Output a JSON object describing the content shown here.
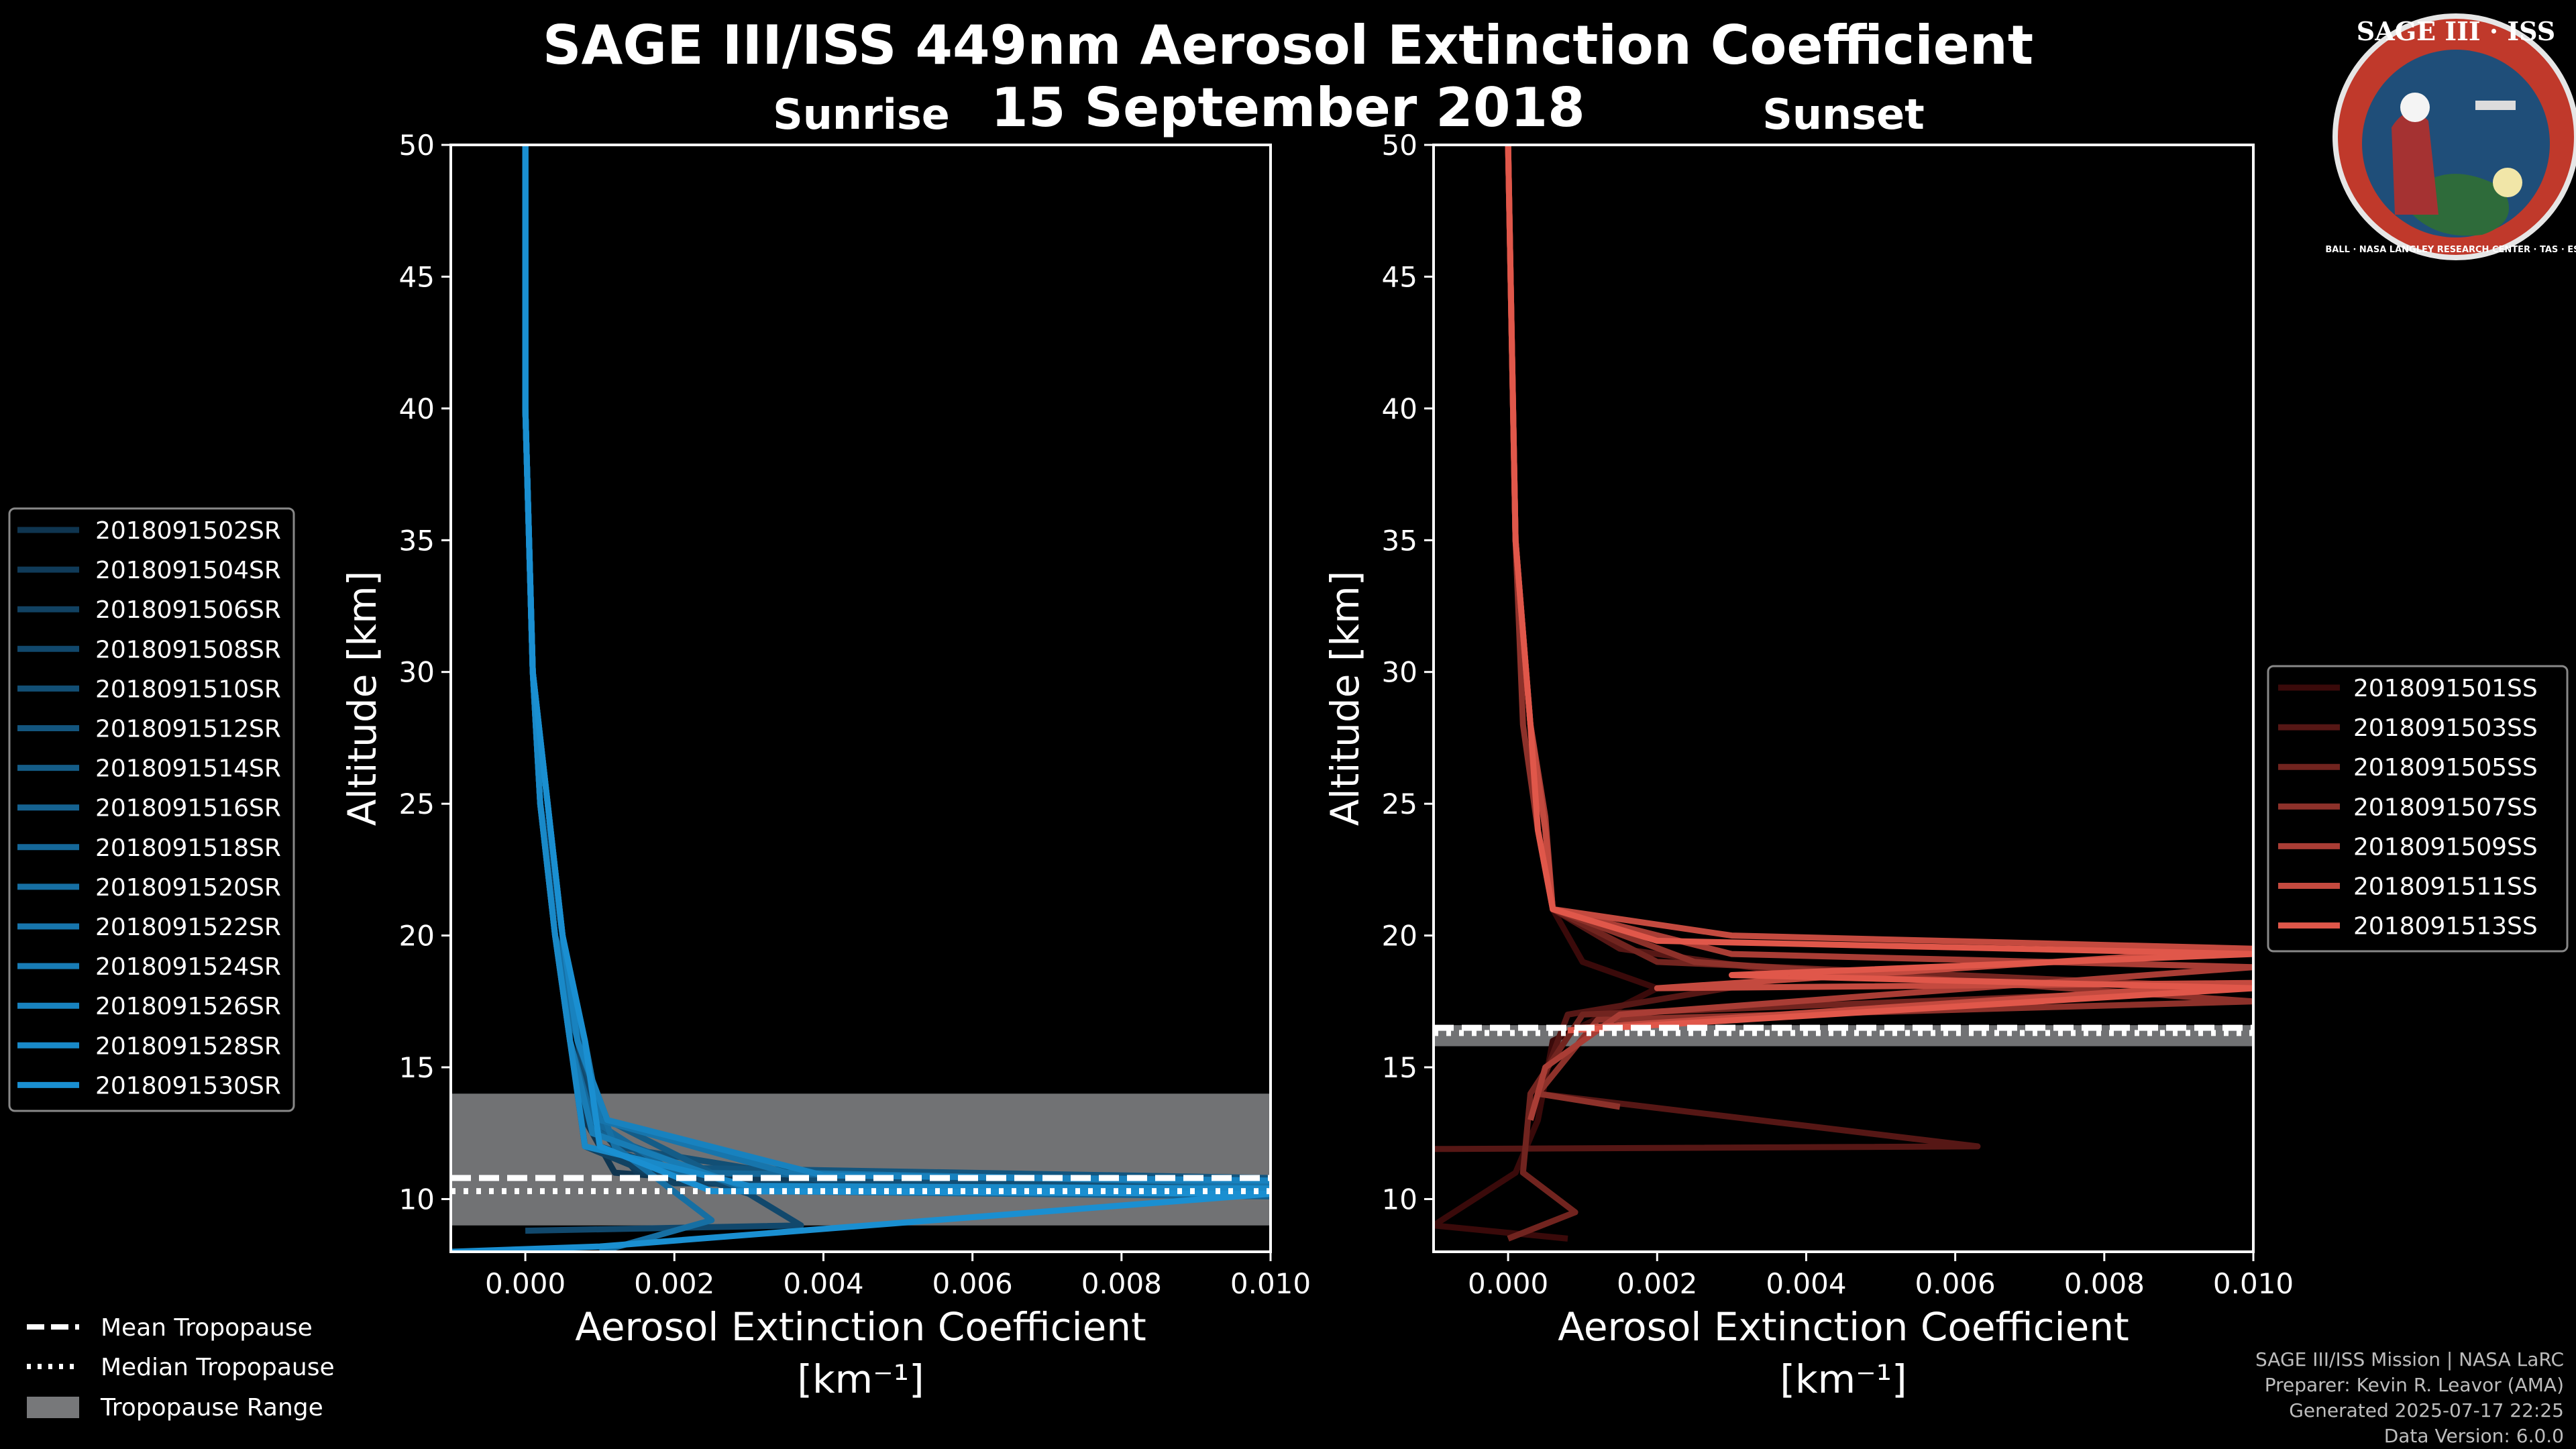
{
  "title": "SAGE III/ISS 449nm Aerosol Extinction Coefficient",
  "date": "15 September 2018",
  "logo": {
    "text": "SAGE III · ISS",
    "ring_text": "BALL · NASA LANGLEY RESEARCH CENTER · TAS · ESA",
    "colors": {
      "ring": "#c0392b",
      "inner": "#1f4e79",
      "ground": "#2e6b3a"
    }
  },
  "footer": [
    "SAGE III/ISS Mission | NASA LaRC",
    "Preparer: Kevin R. Leavor (AMA)",
    "Generated 2025-07-17 22:25",
    "Data Version: 6.0.0"
  ],
  "bottom_legend": [
    {
      "label": "Mean Tropopause",
      "style": "dashed"
    },
    {
      "label": "Median Tropopause",
      "style": "dotted"
    },
    {
      "label": "Tropopause Range",
      "style": "patch"
    }
  ],
  "chart_data": [
    {
      "type": "line",
      "subtitle": "Sunrise",
      "xlabel": "Aerosol Extinction Coefficient",
      "xunit": "[km⁻¹]",
      "ylabel": "Altitude [km]",
      "xlim": [
        -0.001,
        0.01
      ],
      "ylim": [
        8,
        50
      ],
      "xticks": [
        "0.000",
        "0.002",
        "0.004",
        "0.006",
        "0.008",
        "0.010"
      ],
      "xtick_values": [
        0,
        0.002,
        0.004,
        0.006,
        0.008,
        0.01
      ],
      "yticks": [
        10,
        15,
        20,
        25,
        30,
        35,
        40,
        45,
        50
      ],
      "tropopause": {
        "min": 9.0,
        "max": 14.0,
        "mean": 10.8,
        "median": 10.3
      },
      "legend_position": "outside-left",
      "series_color_start": "#0f3550",
      "series_color_end": "#1a8fd1",
      "series": [
        {
          "name": "2018091502SR",
          "data": [
            [
              0.0,
              50
            ],
            [
              0.0,
              40
            ],
            [
              0.0001,
              30
            ],
            [
              0.0002,
              25
            ],
            [
              0.0004,
              20
            ],
            [
              0.0006,
              16
            ],
            [
              0.0008,
              13
            ],
            [
              0.0012,
              11
            ],
            [
              0.004,
              10.4
            ],
            [
              0.01,
              10.2
            ]
          ]
        },
        {
          "name": "2018091504SR",
          "data": [
            [
              0.0,
              50
            ],
            [
              0.0,
              40
            ],
            [
              0.0001,
              30
            ],
            [
              0.0002,
              25
            ],
            [
              0.0005,
              20
            ],
            [
              0.0007,
              16
            ],
            [
              0.0009,
              13
            ],
            [
              0.0015,
              11
            ],
            [
              0.005,
              10.5
            ],
            [
              0.01,
              10.3
            ]
          ]
        },
        {
          "name": "2018091506SR",
          "data": [
            [
              0.0,
              50
            ],
            [
              0.0,
              40
            ],
            [
              0.0001,
              30
            ],
            [
              0.0003,
              25
            ],
            [
              0.0005,
              20
            ],
            [
              0.0006,
              16
            ],
            [
              0.0008,
              12
            ],
            [
              0.002,
              10.6
            ],
            [
              0.01,
              10.4
            ]
          ]
        },
        {
          "name": "2018091508SR",
          "data": [
            [
              0.0,
              50
            ],
            [
              0.0,
              40
            ],
            [
              0.0001,
              30
            ],
            [
              0.0002,
              25
            ],
            [
              0.0004,
              20
            ],
            [
              0.0007,
              16
            ],
            [
              0.001,
              12
            ],
            [
              0.003,
              10.2
            ],
            [
              0.0037,
              9.0
            ],
            [
              0.0,
              8.8
            ]
          ]
        },
        {
          "name": "2018091510SR",
          "data": [
            [
              0.0,
              50
            ],
            [
              0.0,
              40
            ],
            [
              0.0001,
              30
            ],
            [
              0.0003,
              25
            ],
            [
              0.0005,
              20
            ],
            [
              0.0008,
              15
            ],
            [
              0.0012,
              12
            ],
            [
              0.004,
              10.7
            ],
            [
              0.01,
              10.5
            ]
          ]
        },
        {
          "name": "2018091512SR",
          "data": [
            [
              0.0,
              50
            ],
            [
              0.0,
              40
            ],
            [
              0.0001,
              30
            ],
            [
              0.0002,
              25
            ],
            [
              0.0004,
              20
            ],
            [
              0.0006,
              16
            ],
            [
              0.0009,
              13
            ],
            [
              0.0018,
              11.2
            ],
            [
              0.01,
              10.8
            ]
          ]
        },
        {
          "name": "2018091514SR",
          "data": [
            [
              0.0,
              50
            ],
            [
              0.0,
              40
            ],
            [
              0.0001,
              30
            ],
            [
              0.0003,
              25
            ],
            [
              0.0005,
              20
            ],
            [
              0.0007,
              16
            ],
            [
              0.0011,
              13
            ],
            [
              0.0025,
              11
            ],
            [
              0.01,
              10.6
            ]
          ]
        },
        {
          "name": "2018091516SR",
          "data": [
            [
              0.0,
              50
            ],
            [
              0.0,
              40
            ],
            [
              0.0001,
              30
            ],
            [
              0.0002,
              25
            ],
            [
              0.0004,
              20
            ],
            [
              0.0008,
              16
            ],
            [
              0.001,
              12.5
            ],
            [
              0.003,
              10.3
            ],
            [
              0.01,
              10.1
            ]
          ]
        },
        {
          "name": "2018091518SR",
          "data": [
            [
              0.0,
              50
            ],
            [
              0.0,
              40
            ],
            [
              0.0001,
              30
            ],
            [
              0.0003,
              25
            ],
            [
              0.0005,
              20
            ],
            [
              0.0006,
              16
            ],
            [
              0.0009,
              13
            ],
            [
              0.002,
              11
            ],
            [
              0.01,
              10.7
            ]
          ]
        },
        {
          "name": "2018091520SR",
          "data": [
            [
              0.0,
              50
            ],
            [
              0.0,
              40
            ],
            [
              0.0001,
              30
            ],
            [
              0.0002,
              25
            ],
            [
              0.0004,
              20
            ],
            [
              0.0007,
              16
            ],
            [
              0.0012,
              12
            ],
            [
              0.0025,
              9.2
            ],
            [
              0.001,
              8.0
            ]
          ]
        },
        {
          "name": "2018091522SR",
          "data": [
            [
              0.0,
              50
            ],
            [
              0.0,
              40
            ],
            [
              0.0001,
              30
            ],
            [
              0.0003,
              25
            ],
            [
              0.0005,
              20
            ],
            [
              0.0008,
              16
            ],
            [
              0.001,
              13
            ],
            [
              0.0035,
              11
            ],
            [
              0.01,
              10.6
            ]
          ]
        },
        {
          "name": "2018091524SR",
          "data": [
            [
              0.0,
              50
            ],
            [
              0.0,
              40
            ],
            [
              0.0001,
              30
            ],
            [
              0.0002,
              25
            ],
            [
              0.0004,
              20
            ],
            [
              0.0006,
              16
            ],
            [
              0.0009,
              12.5
            ],
            [
              0.003,
              10.4
            ],
            [
              0.01,
              10.2
            ]
          ]
        },
        {
          "name": "2018091526SR",
          "data": [
            [
              0.0,
              50
            ],
            [
              0.0,
              40
            ],
            [
              0.0001,
              30
            ],
            [
              0.0003,
              25
            ],
            [
              0.0005,
              20
            ],
            [
              0.0007,
              16
            ],
            [
              0.0011,
              13
            ],
            [
              0.004,
              10.9
            ],
            [
              0.01,
              10.7
            ]
          ]
        },
        {
          "name": "2018091528SR",
          "data": [
            [
              0.0,
              50
            ],
            [
              0.0,
              40
            ],
            [
              0.0001,
              30
            ],
            [
              0.0002,
              25
            ],
            [
              0.0004,
              20
            ],
            [
              0.0006,
              16
            ],
            [
              0.0008,
              12
            ],
            [
              0.003,
              10.5
            ],
            [
              0.01,
              10.4
            ]
          ]
        },
        {
          "name": "2018091530SR",
          "data": [
            [
              0.0,
              50
            ],
            [
              0.0,
              40
            ],
            [
              0.0001,
              30
            ],
            [
              0.0003,
              25
            ],
            [
              0.0005,
              20
            ],
            [
              0.0008,
              16
            ],
            [
              0.001,
              12
            ],
            [
              0.0025,
              10.3
            ],
            [
              0.01,
              10.2
            ],
            [
              0.001,
              8.2
            ],
            [
              -0.001,
              8.0
            ]
          ]
        }
      ]
    },
    {
      "type": "line",
      "subtitle": "Sunset",
      "xlabel": "Aerosol Extinction Coefficient",
      "xunit": "[km⁻¹]",
      "ylabel": "Altitude [km]",
      "xlim": [
        -0.001,
        0.01
      ],
      "ylim": [
        8,
        50
      ],
      "xticks": [
        "0.000",
        "0.002",
        "0.004",
        "0.006",
        "0.008",
        "0.010"
      ],
      "xtick_values": [
        0,
        0.002,
        0.004,
        0.006,
        0.008,
        0.01
      ],
      "yticks": [
        10,
        15,
        20,
        25,
        30,
        35,
        40,
        45,
        50
      ],
      "tropopause": {
        "min": 15.8,
        "max": 16.6,
        "mean": 16.5,
        "median": 16.3
      },
      "legend_position": "right",
      "series_color_start": "#3a0a0a",
      "series_color_end": "#e0574a",
      "series": [
        {
          "name": "2018091501SS",
          "data": [
            [
              0.0,
              50
            ],
            [
              0.0001,
              35
            ],
            [
              0.0003,
              28
            ],
            [
              0.0005,
              24
            ],
            [
              0.0006,
              21
            ],
            [
              0.001,
              19
            ],
            [
              0.002,
              18
            ],
            [
              0.0006,
              16
            ],
            [
              0.0004,
              13
            ],
            [
              0.0001,
              11
            ],
            [
              -0.001,
              9
            ],
            [
              0.0008,
              8.5
            ]
          ]
        },
        {
          "name": "2018091503SS",
          "data": [
            [
              0.0,
              50
            ],
            [
              0.0001,
              35
            ],
            [
              0.0003,
              28
            ],
            [
              0.0004,
              24
            ],
            [
              0.0006,
              21
            ],
            [
              0.0015,
              19.5
            ],
            [
              0.004,
              18.5
            ],
            [
              0.0008,
              17
            ],
            [
              0.0004,
              14
            ],
            [
              0.0063,
              12
            ],
            [
              -0.001,
              11.9
            ]
          ]
        },
        {
          "name": "2018091505SS",
          "data": [
            [
              0.0,
              50
            ],
            [
              0.0001,
              35
            ],
            [
              0.0003,
              28
            ],
            [
              0.0005,
              24
            ],
            [
              0.0006,
              21
            ],
            [
              0.002,
              19
            ],
            [
              0.01,
              18
            ],
            [
              0.001,
              17
            ],
            [
              0.0003,
              14
            ],
            [
              0.0002,
              11
            ],
            [
              0.0009,
              9.5
            ],
            [
              0.0,
              8.5
            ]
          ]
        },
        {
          "name": "2018091507SS",
          "data": [
            [
              0.0,
              50
            ],
            [
              0.0001,
              35
            ],
            [
              0.0002,
              28
            ],
            [
              0.0004,
              24
            ],
            [
              0.0006,
              21
            ],
            [
              0.0025,
              19
            ],
            [
              0.01,
              17.5
            ],
            [
              0.0012,
              16.8
            ],
            [
              0.0004,
              14
            ],
            [
              0.0015,
              13.5
            ]
          ]
        },
        {
          "name": "2018091509SS",
          "data": [
            [
              0.0,
              50
            ],
            [
              0.0001,
              35
            ],
            [
              0.0003,
              28
            ],
            [
              0.0005,
              24.5
            ],
            [
              0.0006,
              21
            ],
            [
              0.003,
              19.3
            ],
            [
              0.01,
              18.8
            ],
            [
              0.0015,
              17
            ],
            [
              0.0005,
              15
            ],
            [
              0.0003,
              13
            ]
          ]
        },
        {
          "name": "2018091511SS",
          "data": [
            [
              0.0,
              50
            ],
            [
              0.0001,
              35
            ],
            [
              0.0003,
              28
            ],
            [
              0.0005,
              24
            ],
            [
              0.0006,
              21
            ],
            [
              0.003,
              20
            ],
            [
              0.01,
              19.5
            ],
            [
              0.002,
              18
            ],
            [
              0.01,
              18.2
            ],
            [
              0.001,
              16.5
            ]
          ]
        },
        {
          "name": "2018091513SS",
          "data": [
            [
              0.0,
              50
            ],
            [
              0.0001,
              35
            ],
            [
              0.0003,
              28
            ],
            [
              0.0004,
              24
            ],
            [
              0.0006,
              21
            ],
            [
              0.002,
              19.8
            ],
            [
              0.01,
              19.3
            ],
            [
              0.003,
              18.5
            ],
            [
              0.01,
              18.0
            ],
            [
              0.0008,
              16.4
            ]
          ]
        }
      ]
    }
  ]
}
